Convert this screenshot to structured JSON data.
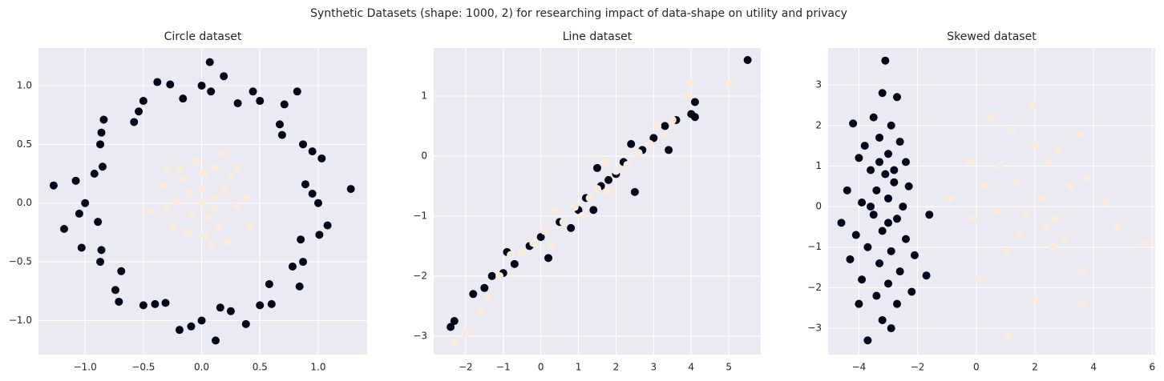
{
  "title": "Synthetic Datasets (shape: 1000, 2) for researching impact of data-shape on utility and privacy",
  "chart_data": [
    {
      "type": "scatter",
      "title": "Circle dataset",
      "xlim": [
        -1.4,
        1.42
      ],
      "ylim": [
        -1.29,
        1.32
      ],
      "xticks": [
        {
          "value": -1.0,
          "label": "−1.0"
        },
        {
          "value": -0.5,
          "label": "−0.5"
        },
        {
          "value": 0,
          "label": "0.0"
        },
        {
          "value": 0.5,
          "label": "0.5"
        },
        {
          "value": 1.0,
          "label": "1.0"
        }
      ],
      "yticks": [
        {
          "value": -1.0,
          "label": "−1.0"
        },
        {
          "value": -0.5,
          "label": "−0.5"
        },
        {
          "value": 0,
          "label": "0.0"
        },
        {
          "value": 0.5,
          "label": "0.5"
        },
        {
          "value": 1.0,
          "label": "1.0"
        }
      ],
      "grid": true,
      "series": [
        {
          "color": "#03051a",
          "x": [
            1.0,
            0.89,
            1.03,
            0.87,
            0.69,
            0.71,
            0.5,
            0.31,
            0.19,
            0.0,
            -0.16,
            -0.38,
            -0.5,
            -0.58,
            -0.84,
            -0.87,
            -0.85,
            -1.08,
            -1.0,
            -0.89,
            -1.03,
            -0.87,
            -0.69,
            -0.71,
            -0.5,
            -0.31,
            -0.19,
            0.0,
            0.16,
            0.38,
            0.5,
            0.58,
            0.84,
            0.87,
            0.85,
            1.08,
            -1.27,
            1.28,
            0.07,
            0.12,
            -1.18,
            0.82,
            0.95,
            0.95,
            0.67,
            0.44,
            0.08,
            -0.27,
            -0.54,
            -0.86,
            -0.92,
            -1.05,
            -0.86,
            -0.74,
            -0.4,
            -0.09,
            0.25,
            0.6,
            0.78,
            1.01
          ],
          "values": [
            0.0,
            0.16,
            0.38,
            0.5,
            0.58,
            0.84,
            0.87,
            0.85,
            1.08,
            1.0,
            0.89,
            1.03,
            0.87,
            0.69,
            0.71,
            0.5,
            0.31,
            0.19,
            0.0,
            -0.16,
            -0.38,
            -0.5,
            -0.58,
            -0.84,
            -0.87,
            -0.85,
            -1.08,
            -1.0,
            -0.89,
            -1.03,
            -0.87,
            -0.69,
            -0.71,
            -0.5,
            -0.31,
            -0.19,
            0.15,
            0.12,
            1.2,
            -1.17,
            -0.22,
            0.95,
            0.08,
            0.44,
            0.67,
            0.95,
            0.95,
            1.01,
            0.78,
            0.6,
            0.25,
            -0.09,
            -0.4,
            -0.74,
            -0.86,
            -1.05,
            -0.92,
            -0.86,
            -0.54,
            -0.27
          ]
        },
        {
          "color": "#faebdd",
          "x": [
            0,
            0.1,
            -0.1,
            0.05,
            -0.08,
            0.2,
            -0.22,
            0.15,
            -0.15,
            0.02,
            0.03,
            0.3,
            -0.3,
            0.25,
            -0.25,
            0.12,
            -0.05,
            0.08,
            -0.33,
            0.38,
            -0.45,
            0.42,
            0.22,
            -0.18,
            0.0,
            0.12,
            -0.12,
            0.3,
            -0.3,
            0.18
          ],
          "values": [
            0,
            0.05,
            0.08,
            -0.12,
            -0.1,
            0.1,
            0.02,
            -0.2,
            0.2,
            0.25,
            -0.28,
            -0.02,
            -0.05,
            0.22,
            -0.2,
            0.3,
            0.35,
            -0.35,
            0.15,
            0.05,
            -0.08,
            -0.2,
            -0.33,
            0.3,
            0.12,
            -0.05,
            -0.25,
            0.3,
            0.28,
            0.42
          ]
        }
      ]
    },
    {
      "type": "scatter",
      "title": "Line dataset",
      "xlim": [
        -2.85,
        5.85
      ],
      "ylim": [
        -3.31,
        1.8
      ],
      "xticks": [
        {
          "value": -2,
          "label": "−2"
        },
        {
          "value": -1,
          "label": "−1"
        },
        0,
        1,
        2,
        3,
        4,
        5
      ],
      "yticks": [
        {
          "value": -3,
          "label": "−3"
        },
        {
          "value": -2,
          "label": "−2"
        },
        {
          "value": -1,
          "label": "−1"
        },
        0,
        1
      ],
      "grid": true,
      "series": [
        {
          "color": "#03051a",
          "x": [
            -2.4,
            -2.3,
            -1.8,
            -1.5,
            -1.3,
            -1.0,
            -0.7,
            -0.3,
            0,
            0.2,
            0.5,
            0.8,
            1.0,
            1.2,
            1.4,
            1.6,
            1.8,
            2.0,
            2.2,
            2.5,
            2.7,
            3.0,
            3.3,
            3.6,
            4.0,
            4.1,
            4.1,
            5.5,
            -0.9,
            1.5,
            2.4,
            3.4
          ],
          "values": [
            -2.85,
            -2.75,
            -2.3,
            -2.2,
            -2.0,
            -1.95,
            -1.8,
            -1.5,
            -1.35,
            -1.7,
            -1.1,
            -1.2,
            -0.9,
            -0.7,
            -0.9,
            -0.5,
            -0.4,
            -0.3,
            -0.1,
            -0.6,
            0.1,
            0.3,
            0.5,
            0.6,
            0.7,
            0.9,
            0.65,
            1.6,
            -1.6,
            -0.2,
            0.2,
            0.1
          ]
        },
        {
          "color": "#faebdd",
          "x": [
            -2.3,
            -2.0,
            -1.6,
            -1.4,
            -1.1,
            -0.8,
            -0.5,
            -0.2,
            0.1,
            0.3,
            0.6,
            0.9,
            1.1,
            1.3,
            1.5,
            1.8,
            2.0,
            2.3,
            2.6,
            2.9,
            3.1,
            3.3,
            3.5,
            3.9,
            4.0,
            5.0,
            0.4,
            1.7
          ],
          "values": [
            -3.1,
            -2.95,
            -2.6,
            -2.35,
            -2.0,
            -1.65,
            -1.6,
            -1.45,
            -1.25,
            -1.5,
            -1.1,
            -0.85,
            -1.0,
            -0.7,
            -0.55,
            -0.6,
            -0.25,
            -0.15,
            0.05,
            0.2,
            0.5,
            0.35,
            0.6,
            1.0,
            1.2,
            1.2,
            -0.9,
            -0.1
          ]
        }
      ]
    },
    {
      "type": "scatter",
      "title": "Skewed dataset",
      "xlim": [
        -5.05,
        6.1
      ],
      "ylim": [
        -3.65,
        3.91
      ],
      "xticks": [
        {
          "value": -4,
          "label": "−4"
        },
        {
          "value": -2,
          "label": "−2"
        },
        0,
        2,
        4,
        6
      ],
      "yticks": [
        {
          "value": -3,
          "label": "−3"
        },
        {
          "value": -2,
          "label": "−2"
        },
        {
          "value": -1,
          "label": "−1"
        },
        0,
        1,
        2,
        3
      ],
      "grid": true,
      "series": [
        {
          "color": "#03051a",
          "x": [
            -3.1,
            -4.2,
            -3.2,
            -2.7,
            -3.5,
            -2.9,
            -3.8,
            -3.3,
            -2.6,
            -4.0,
            -3.0,
            -2.4,
            -3.6,
            -3.1,
            -2.8,
            -4.4,
            -3.4,
            -2.3,
            -3.9,
            -3.0,
            -2.5,
            -4.6,
            -3.5,
            -2.7,
            -1.6,
            -4.1,
            -3.2,
            -2.4,
            -3.7,
            -2.9,
            -2.1,
            -4.3,
            -3.3,
            -2.6,
            -3.9,
            -3.0,
            -1.7,
            -4.0,
            -3.4,
            -2.7,
            -3.2,
            -2.9,
            -3.7,
            -2.2,
            -3.6,
            -3.0,
            -2.8,
            -3.3
          ],
          "values": [
            3.6,
            2.05,
            2.8,
            2.7,
            2.2,
            2.0,
            1.5,
            1.7,
            1.6,
            1.2,
            1.3,
            1.1,
            0.9,
            0.8,
            0.6,
            0.4,
            0.4,
            0.5,
            0.1,
            0.2,
            0.0,
            -0.4,
            -0.2,
            -0.3,
            -0.2,
            -0.7,
            -0.6,
            -0.8,
            -1.0,
            -1.1,
            -1.2,
            -1.3,
            -1.4,
            -1.6,
            -1.8,
            -1.9,
            -1.7,
            -2.4,
            -2.2,
            -2.4,
            -2.8,
            -3.0,
            -3.3,
            -2.1,
            0.0,
            -0.4,
            0.9,
            1.1
          ]
        },
        {
          "color": "#faebdd",
          "x": [
            -0.2,
            -0.9,
            -0.1,
            0.3,
            0.5,
            0.7,
            0.8,
            1.0,
            1.2,
            1.1,
            1.4,
            1.5,
            1.9,
            2.0,
            2.0,
            2.2,
            2.4,
            2.5,
            2.7,
            2.8,
            3.0,
            3.2,
            3.5,
            3.6,
            3.6,
            3.8,
            4.4,
            4.8,
            5.7,
            0.1,
            2.6,
            1.7
          ],
          "values": [
            1.1,
            0.2,
            -0.3,
            0.5,
            2.2,
            -0.1,
            1.0,
            -1.1,
            1.9,
            -3.2,
            0.6,
            -0.7,
            2.5,
            1.5,
            -2.3,
            0.2,
            -0.5,
            1.1,
            -0.3,
            1.4,
            -0.8,
            0.5,
            1.8,
            -1.6,
            -2.4,
            0.7,
            0.1,
            -0.5,
            -0.9,
            -1.8,
            -1.0,
            -0.2
          ]
        }
      ]
    }
  ]
}
